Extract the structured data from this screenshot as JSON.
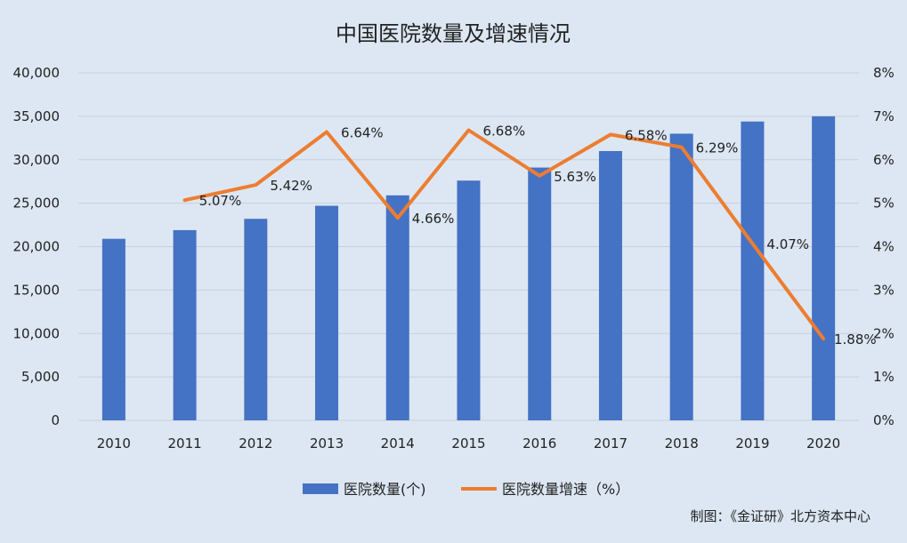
{
  "chart_data": {
    "type": "bar+line",
    "title": "中国医院数量及增速情况",
    "categories": [
      "2010",
      "2011",
      "2012",
      "2013",
      "2014",
      "2015",
      "2016",
      "2017",
      "2018",
      "2019",
      "2020"
    ],
    "series": [
      {
        "name": "医院数量(个)",
        "type": "bar",
        "axis": "left",
        "color": "#4472c4",
        "values": [
          20900,
          21900,
          23200,
          24700,
          25900,
          27600,
          29100,
          31000,
          33000,
          34400,
          35000
        ]
      },
      {
        "name": "医院数量增速（%）",
        "type": "line",
        "axis": "right",
        "color": "#ed7d31",
        "values": [
          null,
          5.07,
          5.42,
          6.64,
          4.66,
          6.68,
          5.63,
          6.58,
          6.29,
          4.07,
          1.88
        ],
        "data_labels": [
          "",
          "5.07%",
          "5.42%",
          "6.64%",
          "4.66%",
          "6.68%",
          "5.63%",
          "6.58%",
          "6.29%",
          "4.07%",
          "1.88%"
        ]
      }
    ],
    "y_left": {
      "ylim": [
        0,
        40000
      ],
      "ticks": [
        0,
        5000,
        10000,
        15000,
        20000,
        25000,
        30000,
        35000,
        40000
      ],
      "tick_labels": [
        "0",
        "5,000",
        "10,000",
        "15,000",
        "20,000",
        "25,000",
        "30,000",
        "35,000",
        "40,000"
      ]
    },
    "y_right": {
      "ylim": [
        0,
        8
      ],
      "ticks": [
        0,
        1,
        2,
        3,
        4,
        5,
        6,
        7,
        8
      ],
      "tick_labels": [
        "0%",
        "1%",
        "2%",
        "3%",
        "4%",
        "5%",
        "6%",
        "7%",
        "8%"
      ]
    },
    "grid": true,
    "legend_position": "bottom"
  },
  "credit": "制图：《金证研》北方资本中心",
  "colors": {
    "background": "#dce7f3",
    "grid": "#c7cfd9",
    "text": "#222222"
  }
}
